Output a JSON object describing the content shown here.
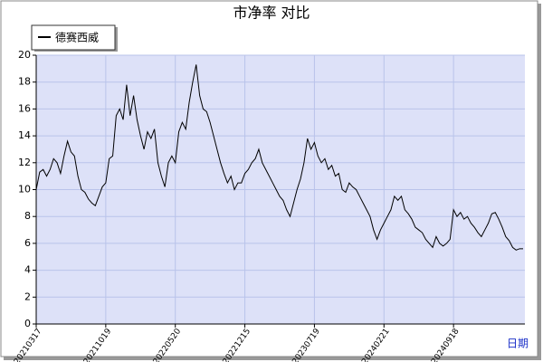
{
  "chart_data": {
    "type": "line",
    "title": "市净率  对比",
    "x_label": "日期",
    "categories": [
      "20210317",
      null,
      null,
      null,
      null,
      null,
      null,
      null,
      null,
      null,
      null,
      null,
      null,
      null,
      null,
      null,
      null,
      null,
      null,
      null,
      "20211019",
      null,
      null,
      null,
      null,
      null,
      null,
      null,
      null,
      null,
      null,
      null,
      null,
      null,
      null,
      null,
      null,
      null,
      null,
      null,
      "20220520",
      null,
      null,
      null,
      null,
      null,
      null,
      null,
      null,
      null,
      null,
      null,
      null,
      null,
      null,
      null,
      null,
      null,
      null,
      null,
      "20221215",
      null,
      null,
      null,
      null,
      null,
      null,
      null,
      null,
      null,
      null,
      null,
      null,
      null,
      null,
      null,
      null,
      null,
      null,
      null,
      "20230719",
      null,
      null,
      null,
      null,
      null,
      null,
      null,
      null,
      null,
      null,
      null,
      null,
      null,
      null,
      null,
      null,
      null,
      null,
      null,
      "20240221",
      null,
      null,
      null,
      null,
      null,
      null,
      null,
      null,
      null,
      null,
      null,
      null,
      null,
      null,
      null,
      null,
      null,
      null,
      null,
      "20240918",
      null,
      null,
      null,
      null,
      null,
      null,
      null,
      null,
      null,
      null,
      null,
      null,
      null,
      null,
      null,
      null,
      null,
      null,
      null,
      null
    ],
    "series": [
      {
        "name": "德赛西威",
        "color": "#000000",
        "values": [
          10,
          11.3,
          11.5,
          11,
          11.5,
          12.3,
          12,
          11.2,
          12.5,
          13.6,
          12.8,
          12.5,
          11,
          10,
          9.8,
          9.3,
          9,
          8.8,
          9.5,
          10.2,
          10.5,
          12.3,
          12.5,
          15.5,
          16,
          15.2,
          17.8,
          15.5,
          17,
          15.2,
          14,
          13,
          14.3,
          13.8,
          14.5,
          12,
          11,
          10.2,
          12,
          12.5,
          12,
          14.3,
          15,
          14.5,
          16.5,
          18,
          19.3,
          17,
          16,
          15.8,
          15,
          14,
          13,
          12,
          11.2,
          10.5,
          11,
          10,
          10.5,
          10.5,
          11.2,
          11.5,
          12,
          12.3,
          13,
          12,
          11.5,
          11,
          10.5,
          10,
          9.5,
          9.2,
          8.5,
          8,
          9,
          10,
          10.8,
          12,
          13.8,
          13,
          13.5,
          12.5,
          12,
          12.3,
          11.5,
          11.8,
          11,
          11.2,
          10,
          9.8,
          10.5,
          10.2,
          10,
          9.5,
          9,
          8.5,
          8,
          7,
          6.3,
          7,
          7.5,
          8,
          8.5,
          9.5,
          9.2,
          9.5,
          8.5,
          8.2,
          7.8,
          7.2,
          7,
          6.8,
          6.3,
          6,
          5.7,
          6.5,
          6,
          5.8,
          6,
          6.3,
          8.5,
          8,
          8.3,
          7.8,
          8,
          7.5,
          7.2,
          6.8,
          6.5,
          7,
          7.5,
          8.2,
          8.3,
          7.8,
          7.2,
          6.5,
          6.2,
          5.7,
          5.5,
          5.6,
          5.6
        ]
      }
    ],
    "ylim": [
      0,
      20
    ],
    "yticks": [
      0,
      2,
      4,
      6,
      8,
      10,
      12,
      14,
      16,
      18,
      20
    ],
    "grid": true
  }
}
